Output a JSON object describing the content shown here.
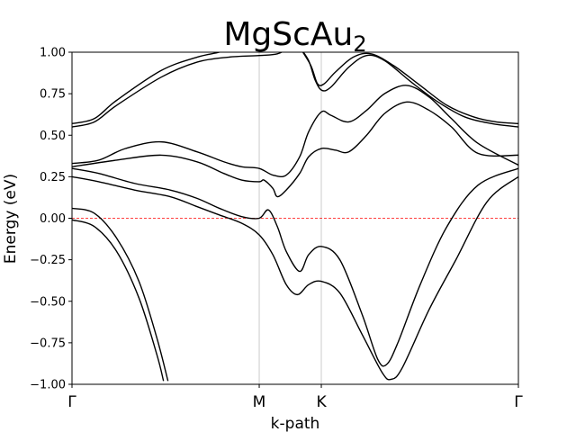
{
  "chart_data": {
    "type": "line",
    "title": "MgScAu",
    "title_subscript": "2",
    "xlabel": "k-path",
    "ylabel": "Energy (eV)",
    "ylim": [
      -1.0,
      1.0
    ],
    "xlim": [
      0,
      1
    ],
    "y_ticks": [
      -1.0,
      -0.75,
      -0.5,
      -0.25,
      0.0,
      0.25,
      0.5,
      0.75,
      1.0
    ],
    "y_tick_labels": [
      "−1.00",
      "−0.75",
      "−0.50",
      "−0.25",
      "0.00",
      "0.25",
      "0.50",
      "0.75",
      "1.00"
    ],
    "kpoints": [
      {
        "label": "Γ",
        "x": 0.0
      },
      {
        "label": "M",
        "x": 0.4194
      },
      {
        "label": "K",
        "x": 0.5585
      },
      {
        "label": "Γ",
        "x": 1.0
      }
    ],
    "fermi_level": 0.0,
    "line_color": "#000000",
    "fermi_color": "#ff0000",
    "grid_color": "#cccccc",
    "series": [
      {
        "values": [
          [
            0,
            0.06
          ],
          [
            0.05,
            0.03
          ],
          [
            0.1,
            -0.12
          ],
          [
            0.15,
            -0.38
          ],
          [
            0.19,
            -0.72
          ],
          [
            0.215,
            -0.98
          ]
        ]
      },
      {
        "values": [
          [
            0,
            -0.01
          ],
          [
            0.05,
            -0.05
          ],
          [
            0.1,
            -0.2
          ],
          [
            0.15,
            -0.48
          ],
          [
            0.19,
            -0.82
          ],
          [
            0.205,
            -0.98
          ]
        ]
      },
      {
        "values": [
          [
            0,
            0.25
          ],
          [
            0.06,
            0.22
          ],
          [
            0.14,
            0.17
          ],
          [
            0.22,
            0.13
          ],
          [
            0.28,
            0.07
          ],
          [
            0.33,
            0.02
          ],
          [
            0.38,
            -0.03
          ],
          [
            0.4194,
            -0.1
          ],
          [
            0.45,
            -0.22
          ],
          [
            0.48,
            -0.4
          ],
          [
            0.505,
            -0.46
          ],
          [
            0.53,
            -0.4
          ],
          [
            0.5585,
            -0.38
          ],
          [
            0.6,
            -0.45
          ],
          [
            0.65,
            -0.7
          ],
          [
            0.695,
            -0.93
          ],
          [
            0.715,
            -0.97
          ],
          [
            0.74,
            -0.9
          ],
          [
            0.8,
            -0.55
          ],
          [
            0.86,
            -0.25
          ],
          [
            0.93,
            0.1
          ],
          [
            1.0,
            0.25
          ]
        ]
      },
      {
        "values": [
          [
            0,
            0.3
          ],
          [
            0.06,
            0.27
          ],
          [
            0.14,
            0.21
          ],
          [
            0.22,
            0.17
          ],
          [
            0.28,
            0.12
          ],
          [
            0.33,
            0.06
          ],
          [
            0.38,
            0.01
          ],
          [
            0.4194,
            0.0
          ],
          [
            0.44,
            0.05
          ],
          [
            0.46,
            -0.05
          ],
          [
            0.48,
            -0.2
          ],
          [
            0.51,
            -0.32
          ],
          [
            0.53,
            -0.22
          ],
          [
            0.5585,
            -0.17
          ],
          [
            0.6,
            -0.25
          ],
          [
            0.65,
            -0.58
          ],
          [
            0.685,
            -0.85
          ],
          [
            0.705,
            -0.88
          ],
          [
            0.73,
            -0.75
          ],
          [
            0.78,
            -0.4
          ],
          [
            0.84,
            -0.05
          ],
          [
            0.91,
            0.2
          ],
          [
            1.0,
            0.3
          ]
        ]
      },
      {
        "values": [
          [
            0,
            0.31
          ],
          [
            0.1,
            0.35
          ],
          [
            0.2,
            0.38
          ],
          [
            0.28,
            0.34
          ],
          [
            0.34,
            0.27
          ],
          [
            0.38,
            0.23
          ],
          [
            0.4194,
            0.22
          ],
          [
            0.43,
            0.23
          ],
          [
            0.45,
            0.18
          ],
          [
            0.46,
            0.13
          ],
          [
            0.48,
            0.17
          ],
          [
            0.51,
            0.27
          ],
          [
            0.53,
            0.37
          ],
          [
            0.5585,
            0.42
          ],
          [
            0.59,
            0.41
          ],
          [
            0.62,
            0.4
          ],
          [
            0.66,
            0.5
          ],
          [
            0.7,
            0.63
          ],
          [
            0.75,
            0.7
          ],
          [
            0.8,
            0.65
          ],
          [
            0.85,
            0.55
          ],
          [
            0.91,
            0.39
          ],
          [
            1.0,
            0.38
          ]
        ]
      },
      {
        "values": [
          [
            0,
            0.33
          ],
          [
            0.06,
            0.35
          ],
          [
            0.12,
            0.42
          ],
          [
            0.2,
            0.46
          ],
          [
            0.28,
            0.4
          ],
          [
            0.34,
            0.34
          ],
          [
            0.38,
            0.31
          ],
          [
            0.4194,
            0.3
          ],
          [
            0.45,
            0.26
          ],
          [
            0.48,
            0.26
          ],
          [
            0.51,
            0.37
          ],
          [
            0.53,
            0.52
          ],
          [
            0.5585,
            0.64
          ],
          [
            0.58,
            0.62
          ],
          [
            0.62,
            0.58
          ],
          [
            0.66,
            0.65
          ],
          [
            0.7,
            0.75
          ],
          [
            0.75,
            0.8
          ],
          [
            0.8,
            0.73
          ],
          [
            0.85,
            0.6
          ],
          [
            0.91,
            0.45
          ],
          [
            1.0,
            0.32
          ]
        ]
      },
      {
        "values": [
          [
            0,
            0.55
          ],
          [
            0.05,
            0.58
          ],
          [
            0.1,
            0.68
          ],
          [
            0.2,
            0.85
          ],
          [
            0.28,
            0.94
          ],
          [
            0.35,
            0.97
          ],
          [
            0.4194,
            0.98
          ],
          [
            0.46,
            0.99
          ],
          [
            0.49,
            1.03
          ]
        ]
      },
      {
        "values": [
          [
            0,
            0.57
          ],
          [
            0.05,
            0.6
          ],
          [
            0.1,
            0.71
          ],
          [
            0.2,
            0.89
          ],
          [
            0.28,
            0.97
          ],
          [
            0.33,
            1.0
          ],
          [
            0.36,
            1.03
          ]
        ]
      },
      {
        "values": [
          [
            0.51,
            1.03
          ],
          [
            0.53,
            0.95
          ],
          [
            0.545,
            0.83
          ],
          [
            0.56,
            0.77
          ],
          [
            0.58,
            0.79
          ],
          [
            0.62,
            0.91
          ],
          [
            0.66,
            0.98
          ],
          [
            0.7,
            0.95
          ],
          [
            0.76,
            0.82
          ],
          [
            0.82,
            0.7
          ],
          [
            0.88,
            0.61
          ],
          [
            0.94,
            0.57
          ],
          [
            1.0,
            0.55
          ]
        ]
      },
      {
        "values": [
          [
            0.51,
            1.03
          ],
          [
            0.535,
            0.92
          ],
          [
            0.55,
            0.81
          ],
          [
            0.565,
            0.81
          ],
          [
            0.59,
            0.88
          ],
          [
            0.63,
            0.97
          ],
          [
            0.67,
            0.99
          ],
          [
            0.72,
            0.92
          ],
          [
            0.78,
            0.8
          ],
          [
            0.84,
            0.68
          ],
          [
            0.9,
            0.61
          ],
          [
            0.95,
            0.58
          ],
          [
            1.0,
            0.57
          ]
        ]
      }
    ]
  }
}
